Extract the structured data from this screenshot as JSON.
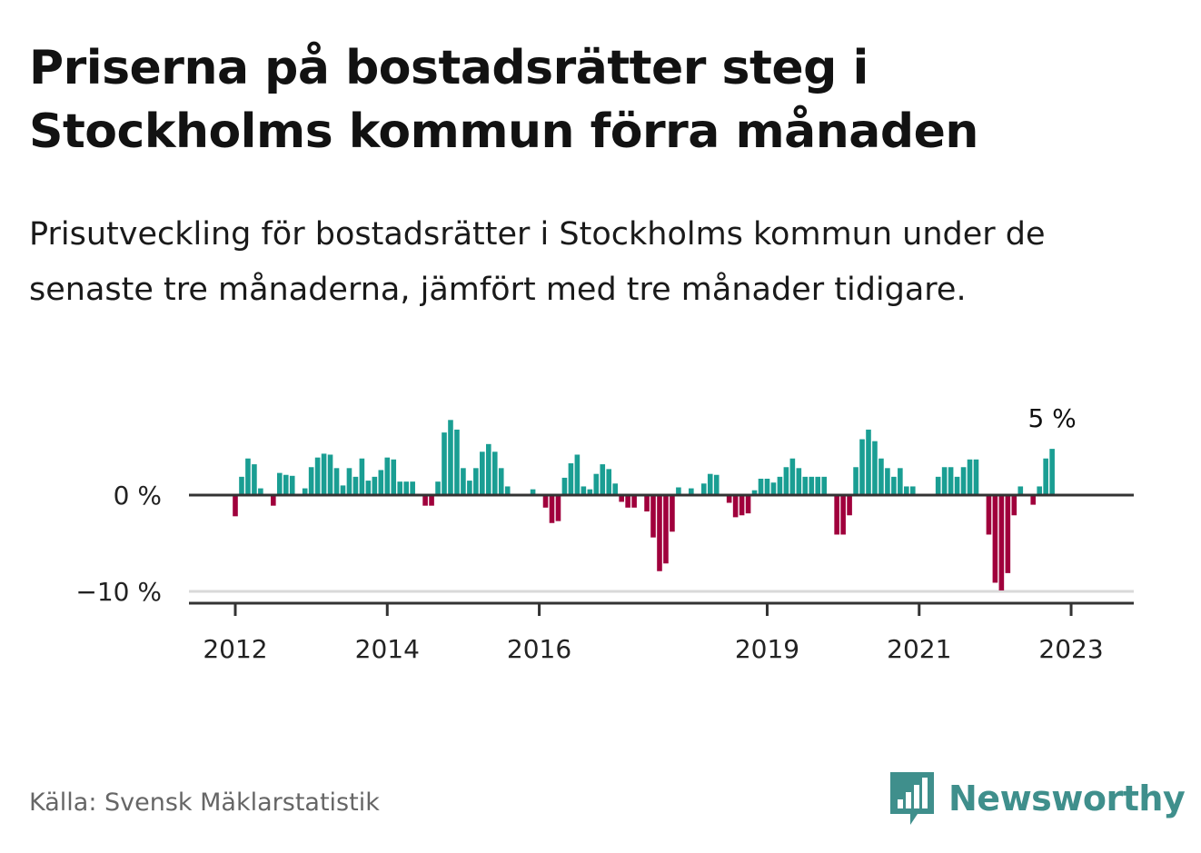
{
  "title": "Priserna på bostadsrätter steg i Stockholms kommun förra månaden",
  "subtitle": "Prisutveckling för bostadsrätter i Stockholms kommun under de senaste tre månaderna, jämfört med tre månader tidigare.",
  "source": "Källa: Svensk Mäklarstatistik",
  "brand": {
    "name": "Newsworthy",
    "icon": "bar-chart-speech-bubble-icon"
  },
  "colors": {
    "positive": "#1a9e93",
    "negative": "#a0003c",
    "axis": "#333333",
    "grid": "#d9d9d9",
    "brand": "#3f8f8c"
  },
  "chart_data": {
    "type": "bar",
    "title": "Prisutveckling för bostadsrätter i Stockholms kommun",
    "unit": "%",
    "start": "2012-01",
    "frequency": "monthly",
    "ylim": [
      -11,
      9
    ],
    "yticks": [
      0,
      -10
    ],
    "ytick_labels": [
      "0 %",
      "−10 %"
    ],
    "xticks": [
      {
        "label": "2012",
        "index": 0
      },
      {
        "label": "2014",
        "index": 24
      },
      {
        "label": "2016",
        "index": 48
      },
      {
        "label": "2019",
        "index": 84
      },
      {
        "label": "2021",
        "index": 108
      },
      {
        "label": "2023",
        "index": 132
      }
    ],
    "last_label": "5 %",
    "values": [
      -2.2,
      1.9,
      3.8,
      3.2,
      0.7,
      0.0,
      -1.1,
      2.3,
      2.1,
      2.0,
      0.0,
      0.7,
      2.9,
      3.9,
      4.3,
      4.2,
      2.8,
      1.0,
      2.8,
      1.9,
      3.8,
      1.5,
      1.9,
      2.6,
      3.9,
      3.7,
      1.4,
      1.4,
      1.4,
      0.0,
      -1.1,
      -1.1,
      1.4,
      6.5,
      7.8,
      6.8,
      2.8,
      1.5,
      2.8,
      4.5,
      5.3,
      4.5,
      2.8,
      0.9,
      0.0,
      0.0,
      0.0,
      0.6,
      0.0,
      -1.3,
      -2.9,
      -2.7,
      1.8,
      3.3,
      4.2,
      0.9,
      0.6,
      2.2,
      3.2,
      2.7,
      1.2,
      -0.7,
      -1.3,
      -1.3,
      0.0,
      -1.7,
      -4.4,
      -7.9,
      -7.1,
      -3.8,
      0.8,
      0.0,
      0.7,
      0.0,
      1.2,
      2.2,
      2.1,
      0.0,
      -0.8,
      -2.3,
      -2.1,
      -1.9,
      0.5,
      1.7,
      1.7,
      1.3,
      1.9,
      2.9,
      3.8,
      2.8,
      1.9,
      1.9,
      1.9,
      1.9,
      0.0,
      -4.1,
      -4.1,
      -2.1,
      2.9,
      5.8,
      6.8,
      5.6,
      3.8,
      2.8,
      1.9,
      2.8,
      0.9,
      0.9,
      0.0,
      0.0,
      0.0,
      1.9,
      2.9,
      2.9,
      1.9,
      2.9,
      3.7,
      3.7,
      0.0,
      -4.1,
      -9.1,
      -9.9,
      -8.1,
      -2.1,
      0.9,
      0.0,
      -1.0,
      0.9,
      3.8,
      4.8
    ]
  }
}
